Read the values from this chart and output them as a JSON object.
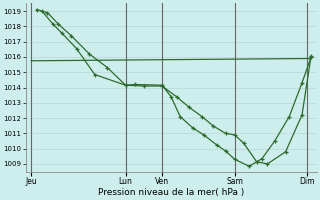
{
  "background_color": "#ceeeed",
  "grid_color": "#b8d8d8",
  "line_color": "#2d6b2d",
  "xlabel": "Pression niveau de la mer( hPa )",
  "ylim": [
    1008.5,
    1019.5
  ],
  "yticks": [
    1009,
    1010,
    1011,
    1012,
    1013,
    1014,
    1015,
    1016,
    1017,
    1018,
    1019
  ],
  "xlim": [
    0,
    16
  ],
  "day_ticks_x": [
    0.3,
    5.5,
    7.5,
    11.5,
    15.5
  ],
  "day_labels": [
    "Jeu",
    "Lun",
    "Ven",
    "Sam",
    "Dim"
  ],
  "vlines_x": [
    0.3,
    5.5,
    7.5,
    11.5,
    15.5
  ],
  "series1_x": [
    0.3,
    15.7
  ],
  "series1_y": [
    1015.75,
    1015.9
  ],
  "series2_x": [
    0.6,
    1.2,
    1.8,
    2.5,
    3.5,
    4.5,
    5.5,
    6.5,
    7.5,
    8.3,
    9.0,
    9.7,
    10.3,
    11.0,
    11.5,
    12.0,
    12.7,
    13.3,
    14.3,
    15.2,
    15.7
  ],
  "series2_y": [
    1019.1,
    1018.9,
    1018.15,
    1017.4,
    1016.2,
    1015.3,
    1014.15,
    1014.1,
    1014.1,
    1013.4,
    1012.7,
    1012.1,
    1011.5,
    1011.0,
    1010.9,
    1010.35,
    1009.15,
    1009.0,
    1009.8,
    1012.2,
    1016.05
  ],
  "series3_x": [
    0.9,
    1.5,
    2.0,
    2.8,
    3.8,
    5.5,
    6.0,
    7.5,
    8.0,
    8.5,
    9.2,
    9.8,
    10.5,
    11.0,
    11.5,
    12.3,
    13.0,
    13.7,
    14.5,
    15.2,
    15.7
  ],
  "series3_y": [
    1019.0,
    1018.15,
    1017.55,
    1016.55,
    1014.85,
    1014.15,
    1014.2,
    1014.15,
    1013.4,
    1012.1,
    1011.35,
    1010.9,
    1010.25,
    1009.85,
    1009.3,
    1008.85,
    1009.35,
    1010.5,
    1012.1,
    1014.3,
    1016.0
  ]
}
